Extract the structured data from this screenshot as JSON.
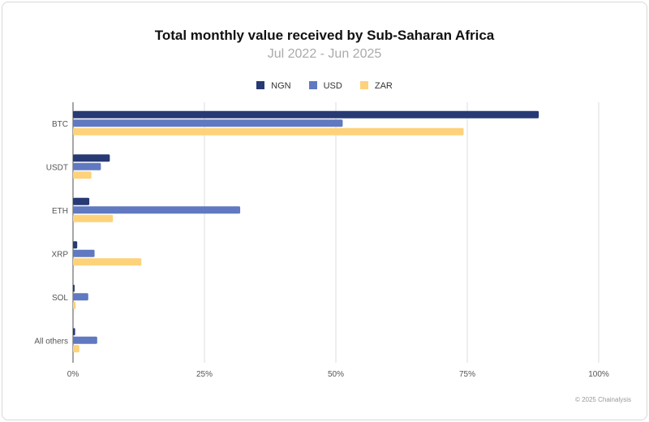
{
  "chart_data": {
    "type": "bar",
    "orientation": "horizontal",
    "title": "Total monthly value received by Sub-Saharan Africa",
    "subtitle": "Jul 2022 - Jun 2025",
    "categories": [
      "BTC",
      "USDT",
      "ETH",
      "XRP",
      "SOL",
      "All others"
    ],
    "series": [
      {
        "name": "NGN",
        "color": "#283a74",
        "values": [
          88.6,
          7.0,
          3.1,
          0.8,
          0.3,
          0.4
        ]
      },
      {
        "name": "USD",
        "color": "#6079c0",
        "values": [
          51.3,
          5.3,
          31.8,
          4.1,
          2.9,
          4.6
        ]
      },
      {
        "name": "ZAR",
        "color": "#fdd27a",
        "values": [
          74.3,
          3.5,
          7.6,
          13.0,
          0.5,
          1.2
        ]
      }
    ],
    "xlim": [
      0,
      100
    ],
    "xticks": [
      0,
      25,
      50,
      75,
      100
    ],
    "xtick_labels": [
      "0%",
      "25%",
      "50%",
      "75%",
      "100%"
    ],
    "grid": true,
    "legend_position": "top"
  },
  "footer": "© 2025 Chainalysis"
}
